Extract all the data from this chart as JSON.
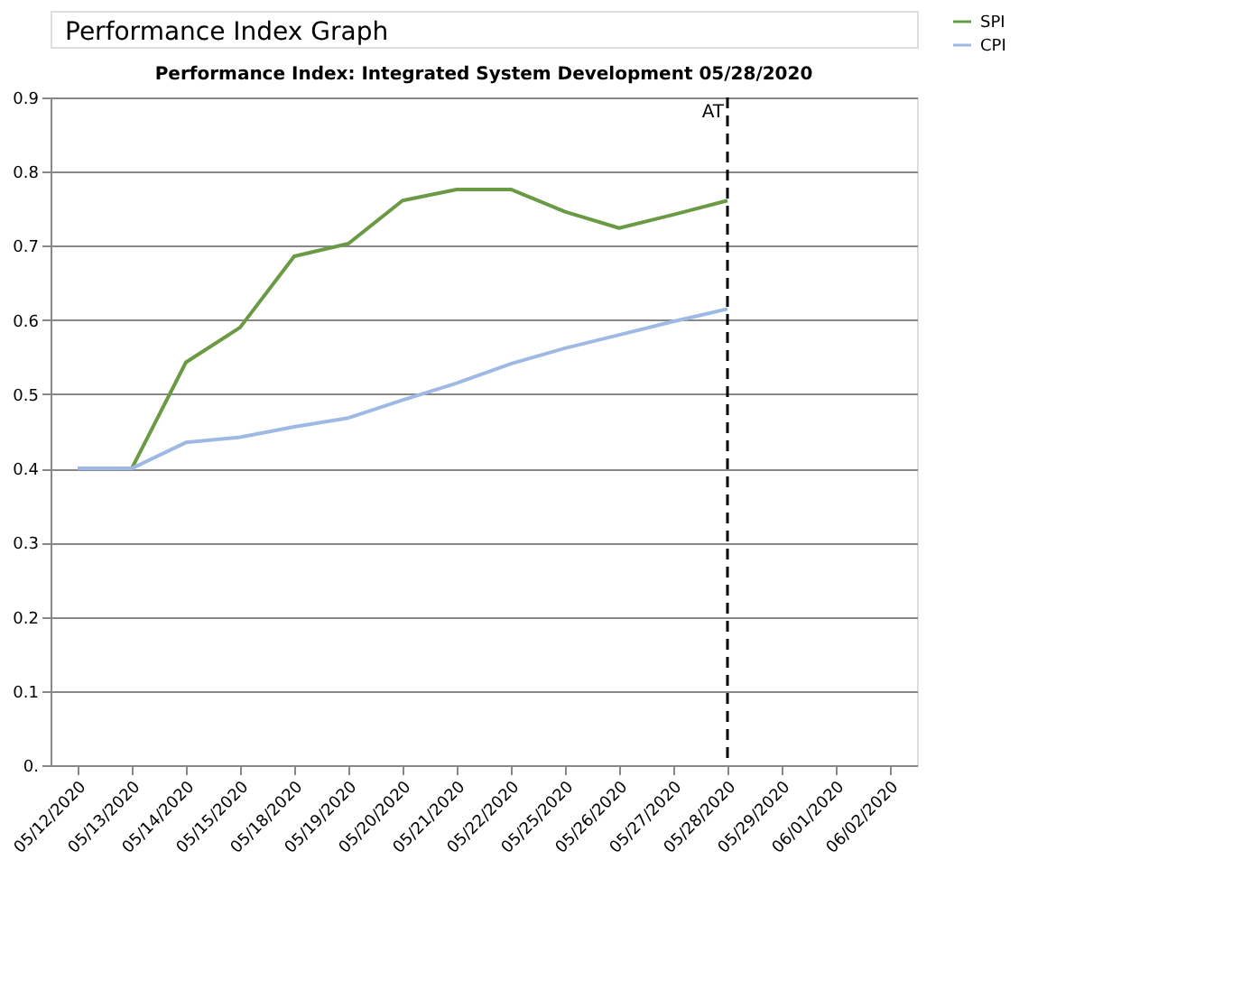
{
  "chart_data": {
    "type": "line",
    "title": "Performance Index: Integrated System Development    05/28/2020",
    "annotations": [
      "Performance Index Graph"
    ],
    "categories": [
      "05/12/2020",
      "05/13/2020",
      "05/14/2020",
      "05/15/2020",
      "05/18/2020",
      "05/19/2020",
      "05/20/2020",
      "05/21/2020",
      "05/22/2020",
      "05/25/2020",
      "05/26/2020",
      "05/27/2020",
      "05/28/2020",
      "05/29/2020",
      "06/01/2020",
      "06/02/2020"
    ],
    "series": [
      {
        "name": "SPI",
        "color": "#6a9a44",
        "values": [
          null,
          0.4,
          0.543,
          0.59,
          0.686,
          0.703,
          0.761,
          0.776,
          0.776,
          0.746,
          0.724,
          0.742,
          0.761,
          null,
          null,
          null
        ]
      },
      {
        "name": "CPI",
        "color": "#9db9e4",
        "values": [
          0.4,
          0.4,
          0.435,
          0.442,
          0.456,
          0.468,
          0.492,
          0.515,
          0.541,
          0.562,
          0.58,
          0.598,
          0.615,
          null,
          null,
          null
        ]
      }
    ],
    "ylim": [
      0,
      0.9
    ],
    "yticks": [
      {
        "value": 0,
        "label": "0."
      },
      0.1,
      0.2,
      0.3,
      0.4,
      0.5,
      0.6,
      0.7,
      0.8,
      0.9
    ],
    "ref_lines": [
      {
        "axis": "x",
        "value": "05/28/2020",
        "label": "AT",
        "color": "#000000",
        "line_style": "dashed"
      }
    ],
    "grid": "y",
    "legend": "right",
    "marker": "none",
    "line_style": "solid"
  }
}
